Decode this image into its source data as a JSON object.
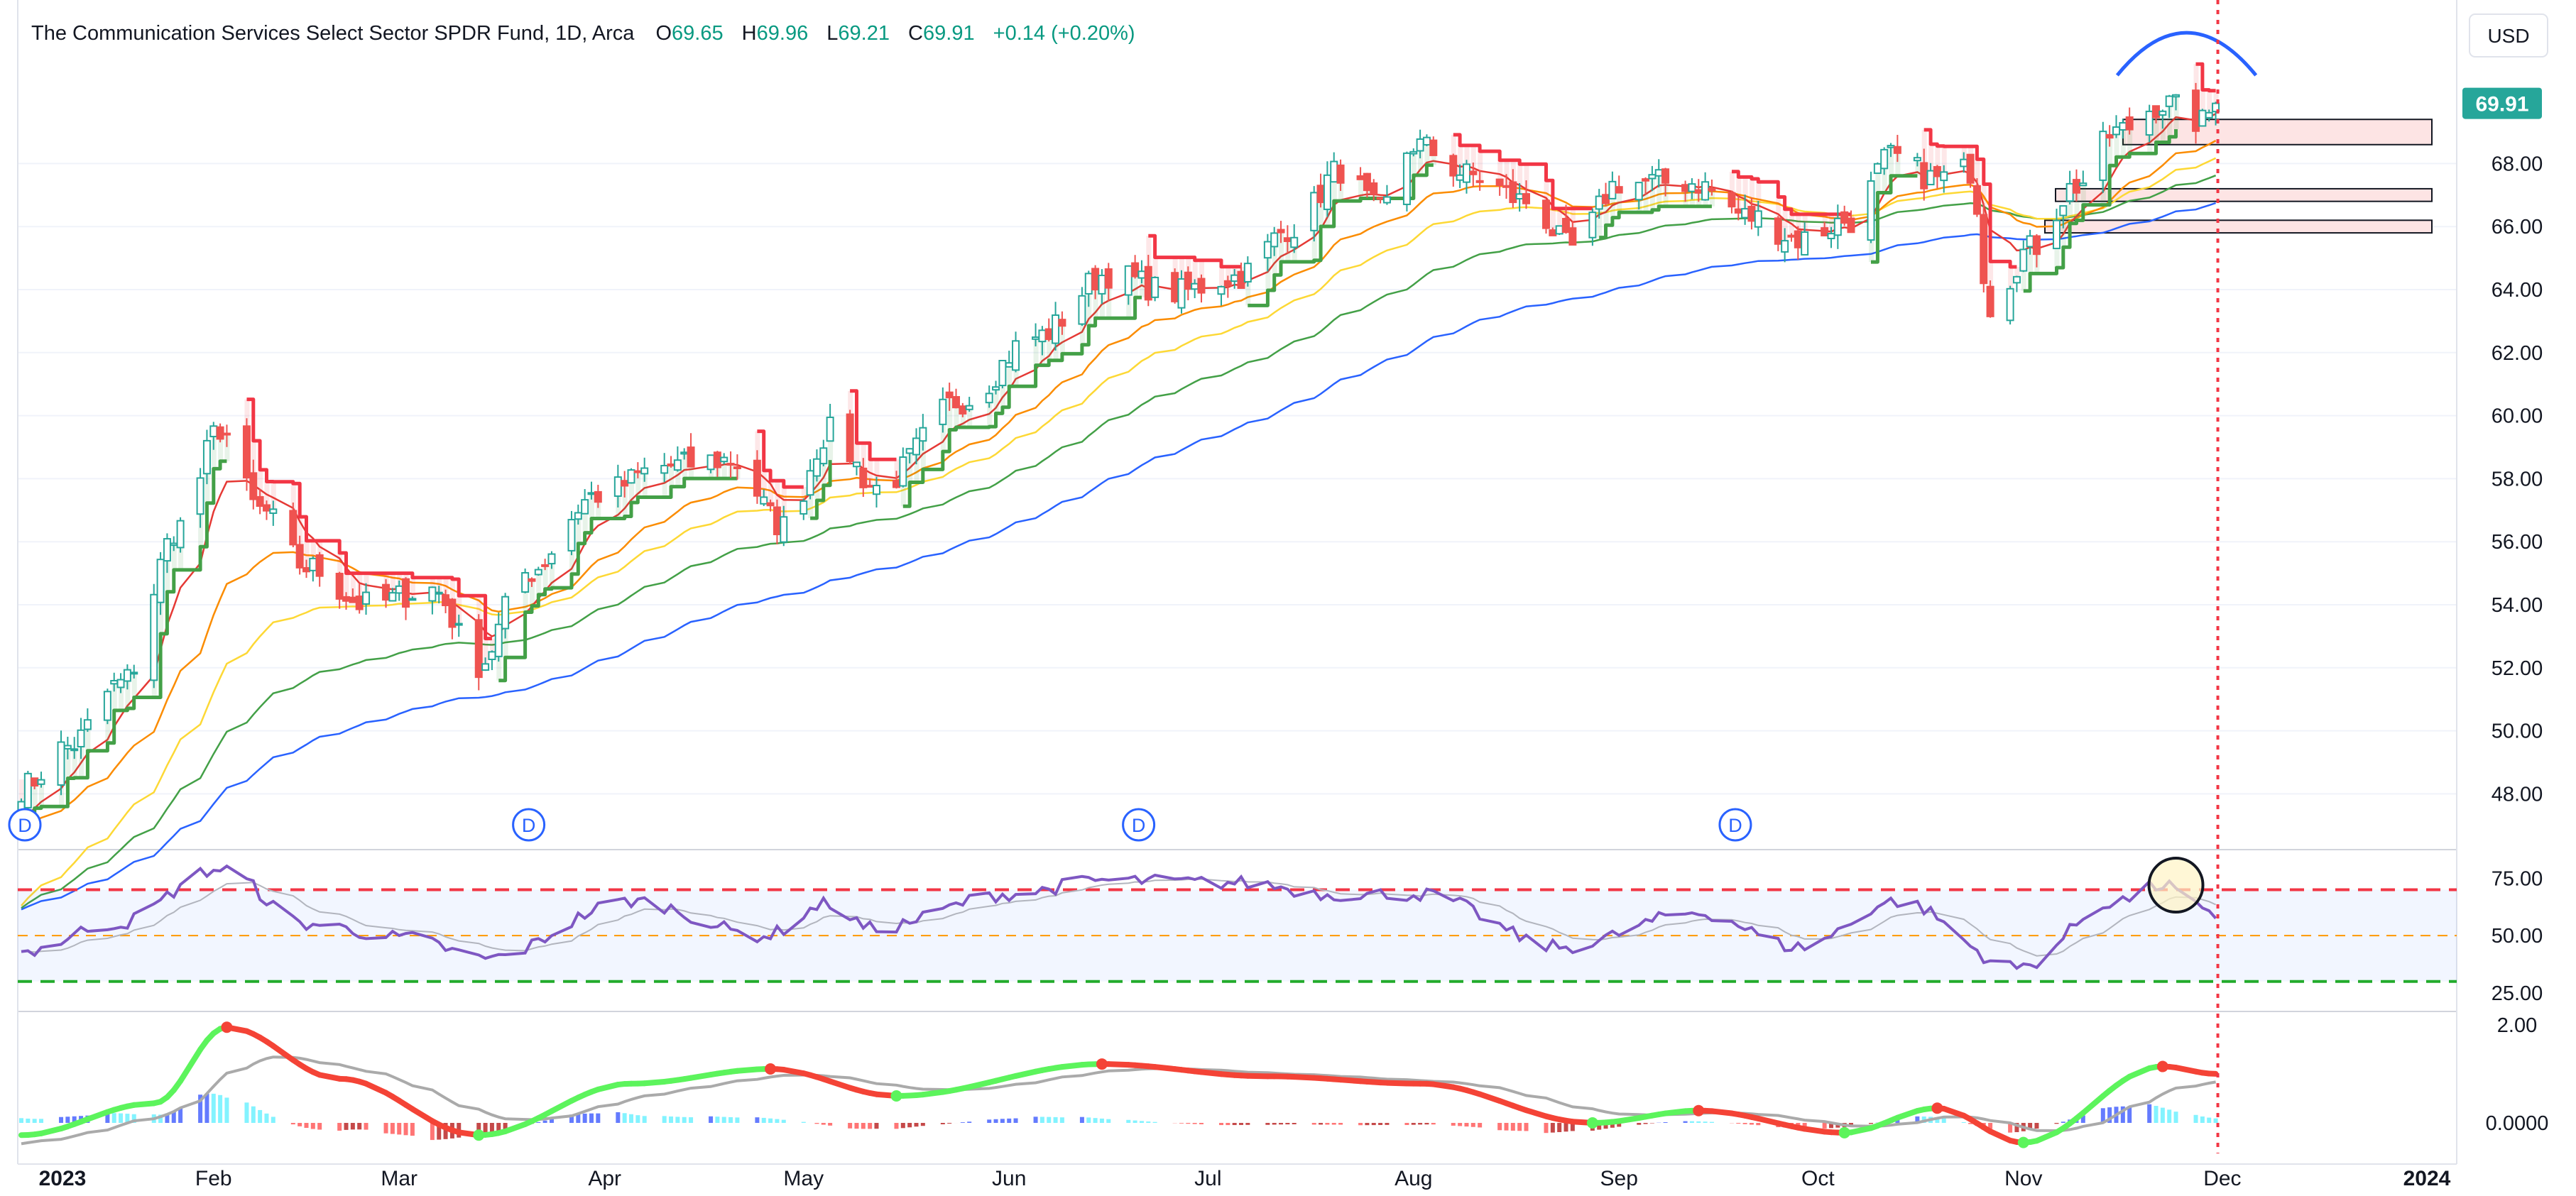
{
  "header": {
    "symbol_title": "The Communication Services Select Sector SPDR Fund, 1D, Arca",
    "open_label": "O",
    "open_value": "69.65",
    "high_label": "H",
    "high_value": "69.96",
    "low_label": "L",
    "low_value": "69.21",
    "close_label": "C",
    "close_value": "69.91",
    "change": "+0.14 (+0.20%)"
  },
  "currency_button": "USD",
  "last_price_badge": "69.91",
  "colors": {
    "up": "#26a69a",
    "down": "#ef5350",
    "rsi_line": "#7e57c2",
    "ema_blue": "#2962ff",
    "ema_green": "#43a047",
    "ema_yellow": "#fdd835",
    "ema_orange": "#fb8c00",
    "ema_red": "#e53935",
    "stop_green": "#43a047",
    "stop_red": "#f23645",
    "overbought": "#f23645",
    "oversold": "#22ab2b",
    "midline": "#ff9800",
    "cursor_line": "#f23645"
  },
  "chart_data": [
    {
      "type": "candlestick",
      "title": "The Communication Services Select Sector SPDR Fund, 1D, Arca",
      "y_axis": {
        "ticks": [
          "48.00",
          "50.00",
          "52.00",
          "54.00",
          "56.00",
          "58.00",
          "60.00",
          "62.00",
          "64.00",
          "66.00",
          "68.00"
        ],
        "ylim": [
          46.5,
          71.5
        ]
      },
      "x_axis": {
        "ticks": [
          "2023",
          "Feb",
          "Mar",
          "Apr",
          "May",
          "Jun",
          "Jul",
          "Aug",
          "Sep",
          "Oct",
          "Nov",
          "Dec",
          "2024"
        ],
        "bold_ticks": [
          "2023",
          "2024"
        ]
      },
      "close_keypoints": [
        {
          "date": "2023-01-03",
          "close": 48.2
        },
        {
          "date": "2023-01-10",
          "close": 49.5
        },
        {
          "date": "2023-01-18",
          "close": 51.5
        },
        {
          "date": "2023-01-27",
          "close": 56.5
        },
        {
          "date": "2023-02-02",
          "close": 59.6
        },
        {
          "date": "2023-02-08",
          "close": 57.0
        },
        {
          "date": "2023-02-15",
          "close": 55.2
        },
        {
          "date": "2023-02-24",
          "close": 54.0
        },
        {
          "date": "2023-03-06",
          "close": 54.5
        },
        {
          "date": "2023-03-13",
          "close": 52.1
        },
        {
          "date": "2023-03-20",
          "close": 55.0
        },
        {
          "date": "2023-03-31",
          "close": 57.5
        },
        {
          "date": "2023-04-10",
          "close": 58.4
        },
        {
          "date": "2023-04-20",
          "close": 58.6
        },
        {
          "date": "2023-04-28",
          "close": 56.5
        },
        {
          "date": "2023-05-05",
          "close": 59.5
        },
        {
          "date": "2023-05-12",
          "close": 57.7
        },
        {
          "date": "2023-05-25",
          "close": 60.5
        },
        {
          "date": "2023-06-05",
          "close": 62.5
        },
        {
          "date": "2023-06-16",
          "close": 64.5
        },
        {
          "date": "2023-06-26",
          "close": 63.9
        },
        {
          "date": "2023-07-05",
          "close": 64.4
        },
        {
          "date": "2023-07-14",
          "close": 66.0
        },
        {
          "date": "2023-07-21",
          "close": 67.8
        },
        {
          "date": "2023-07-27",
          "close": 66.5
        },
        {
          "date": "2023-08-01",
          "close": 68.6
        },
        {
          "date": "2023-08-10",
          "close": 67.6
        },
        {
          "date": "2023-08-18",
          "close": 66.8
        },
        {
          "date": "2023-08-25",
          "close": 65.3
        },
        {
          "date": "2023-09-01",
          "close": 67.4
        },
        {
          "date": "2023-09-12",
          "close": 67.4
        },
        {
          "date": "2023-09-21",
          "close": 66.3
        },
        {
          "date": "2023-09-28",
          "close": 65.6
        },
        {
          "date": "2023-10-06",
          "close": 66.2
        },
        {
          "date": "2023-10-12",
          "close": 68.2
        },
        {
          "date": "2023-10-19",
          "close": 67.5
        },
        {
          "date": "2023-10-24",
          "close": 67.8
        },
        {
          "date": "2023-10-27",
          "close": 63.5
        },
        {
          "date": "2023-11-02",
          "close": 65.3
        },
        {
          "date": "2023-11-09",
          "close": 67.3
        },
        {
          "date": "2023-11-15",
          "close": 69.0
        },
        {
          "date": "2023-11-22",
          "close": 69.9
        },
        {
          "date": "2023-11-28",
          "close": 69.3
        },
        {
          "date": "2023-11-30",
          "close": 69.91
        }
      ],
      "last": {
        "open": 69.65,
        "high": 69.96,
        "low": 69.21,
        "close": 69.91,
        "change": 0.14,
        "change_pct": 0.2
      },
      "moving_averages": [
        "red (fast)",
        "orange",
        "yellow",
        "green",
        "blue (slow)"
      ],
      "dividend_markers": {
        "label": "D",
        "dates": [
          "2023-01-03",
          "2023-03-20",
          "2023-06-20",
          "2023-09-18"
        ]
      },
      "zones": [
        {
          "from": 68.6,
          "to": 69.4
        },
        {
          "from": 66.8,
          "to": 67.2
        },
        {
          "from": 65.8,
          "to": 66.2
        }
      ],
      "drawings": [
        "blue arc over Nov-Dec top",
        "vertical red dotted line at 2023-11-30"
      ]
    },
    {
      "type": "line",
      "title": "RSI",
      "y_axis": {
        "ticks": [
          "25.00",
          "50.00",
          "75.00"
        ],
        "ylim": [
          20,
          85
        ]
      },
      "levels": {
        "overbought": 70,
        "middle": 50,
        "oversold": 30
      },
      "series_keypoints": [
        {
          "date": "2023-01-03",
          "value": 43
        },
        {
          "date": "2023-01-17",
          "value": 55
        },
        {
          "date": "2023-02-02",
          "value": 79
        },
        {
          "date": "2023-02-15",
          "value": 55
        },
        {
          "date": "2023-03-02",
          "value": 49
        },
        {
          "date": "2023-03-14",
          "value": 40
        },
        {
          "date": "2023-04-05",
          "value": 65
        },
        {
          "date": "2023-04-25",
          "value": 50
        },
        {
          "date": "2023-05-05",
          "value": 64
        },
        {
          "date": "2023-05-11",
          "value": 53
        },
        {
          "date": "2023-06-01",
          "value": 68
        },
        {
          "date": "2023-06-15",
          "value": 74
        },
        {
          "date": "2023-07-06",
          "value": 73
        },
        {
          "date": "2023-07-20",
          "value": 68
        },
        {
          "date": "2023-08-02",
          "value": 68
        },
        {
          "date": "2023-08-23",
          "value": 45
        },
        {
          "date": "2023-09-13",
          "value": 60
        },
        {
          "date": "2023-09-28",
          "value": 45
        },
        {
          "date": "2023-10-13",
          "value": 65
        },
        {
          "date": "2023-10-31",
          "value": 36
        },
        {
          "date": "2023-11-15",
          "value": 65
        },
        {
          "date": "2023-11-22",
          "value": 72
        },
        {
          "date": "2023-11-30",
          "value": 58
        }
      ],
      "highlight_circle": "2023-11-24"
    },
    {
      "type": "line",
      "title": "MACD",
      "y_axis": {
        "ticks": [
          "2.00",
          "0.0000"
        ],
        "ylim": [
          -0.55,
          2.2
        ]
      },
      "series_keypoints": [
        {
          "date": "2023-01-03",
          "value": -0.25
        },
        {
          "date": "2023-01-23",
          "value": 0.4
        },
        {
          "date": "2023-02-03",
          "value": 1.95
        },
        {
          "date": "2023-02-20",
          "value": 0.9
        },
        {
          "date": "2023-03-13",
          "value": -0.25
        },
        {
          "date": "2023-04-05",
          "value": 0.8
        },
        {
          "date": "2023-04-26",
          "value": 1.1
        },
        {
          "date": "2023-05-15",
          "value": 0.55
        },
        {
          "date": "2023-06-15",
          "value": 1.2
        },
        {
          "date": "2023-07-10",
          "value": 0.95
        },
        {
          "date": "2023-08-02",
          "value": 0.8
        },
        {
          "date": "2023-08-28",
          "value": 0.0
        },
        {
          "date": "2023-09-13",
          "value": 0.25
        },
        {
          "date": "2023-10-05",
          "value": -0.2
        },
        {
          "date": "2023-10-19",
          "value": 0.3
        },
        {
          "date": "2023-11-01",
          "value": -0.4
        },
        {
          "date": "2023-11-22",
          "value": 1.15
        },
        {
          "date": "2023-11-30",
          "value": 1.0
        }
      ]
    }
  ]
}
